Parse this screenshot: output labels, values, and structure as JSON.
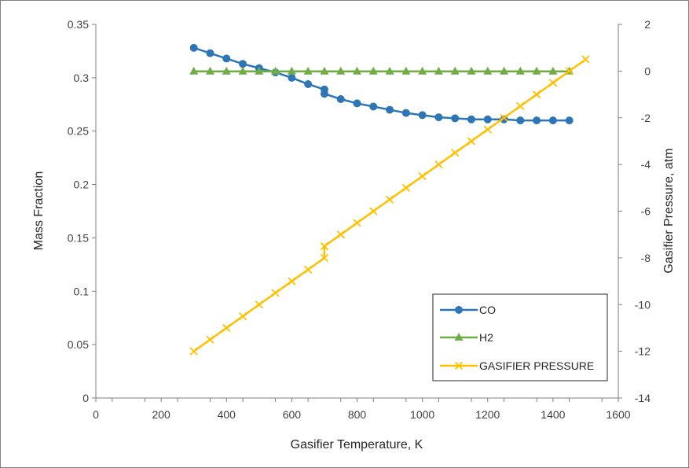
{
  "chart_data": {
    "type": "line",
    "xlabel": "Gasifier Temperature, K",
    "ylabel": "Mass Fraction",
    "y2label": "Gasifier Pressure, atm",
    "xlim": [
      0,
      1600
    ],
    "ylim": [
      0,
      0.35
    ],
    "y2lim": [
      -14,
      2
    ],
    "x_ticks": [
      "0",
      "200",
      "400",
      "600",
      "800",
      "1000",
      "1200",
      "1400",
      "1600"
    ],
    "y_ticks": [
      "0",
      "0.05",
      "0.1",
      "0.15",
      "0.2",
      "0.25",
      "0.3",
      "0.35"
    ],
    "y2_ticks": [
      "-14",
      "-12",
      "-10",
      "-8",
      "-6",
      "-4",
      "-2",
      "0",
      "2"
    ],
    "legend_position": "bottom-right",
    "grid": false,
    "series": [
      {
        "name": "CO",
        "axis": "left",
        "color": "#2e75b6",
        "marker": "circle",
        "x": [
          300,
          350,
          400,
          450,
          500,
          550,
          600,
          650,
          700,
          700,
          750,
          800,
          850,
          900,
          950,
          1000,
          1050,
          1100,
          1150,
          1200,
          1250,
          1300,
          1350,
          1400,
          1450
        ],
        "values": [
          0.328,
          0.323,
          0.318,
          0.313,
          0.309,
          0.305,
          0.3,
          0.294,
          0.289,
          0.285,
          0.28,
          0.276,
          0.273,
          0.27,
          0.267,
          0.265,
          0.263,
          0.262,
          0.261,
          0.261,
          0.261,
          0.26,
          0.26,
          0.26,
          0.26
        ]
      },
      {
        "name": "H2",
        "axis": "left",
        "color": "#70ad47",
        "marker": "triangle",
        "x": [
          300,
          350,
          400,
          450,
          500,
          550,
          600,
          650,
          700,
          750,
          800,
          850,
          900,
          950,
          1000,
          1050,
          1100,
          1150,
          1200,
          1250,
          1300,
          1350,
          1400,
          1450
        ],
        "values": [
          0.306,
          0.306,
          0.306,
          0.306,
          0.306,
          0.306,
          0.306,
          0.306,
          0.306,
          0.306,
          0.306,
          0.306,
          0.306,
          0.306,
          0.306,
          0.306,
          0.306,
          0.306,
          0.306,
          0.306,
          0.306,
          0.306,
          0.306,
          0.306
        ]
      },
      {
        "name": "GASIFIER PRESSURE",
        "axis": "right",
        "color": "#ffc000",
        "marker": "x",
        "x": [
          300,
          350,
          400,
          450,
          500,
          550,
          600,
          650,
          700,
          700,
          700,
          750,
          800,
          850,
          900,
          950,
          1000,
          1050,
          1100,
          1150,
          1200,
          1250,
          1300,
          1350,
          1400,
          1450,
          1500
        ],
        "values": [
          -12,
          -11.5,
          -11,
          -10.5,
          -10,
          -9.5,
          -9,
          -8.5,
          -8,
          -7.5,
          -7.5,
          -7,
          -6.5,
          -6,
          -5.5,
          -5,
          -4.5,
          -4,
          -3.5,
          -3,
          -2.5,
          -2,
          -1.5,
          -1,
          -0.5,
          0,
          0.5
        ]
      }
    ]
  }
}
